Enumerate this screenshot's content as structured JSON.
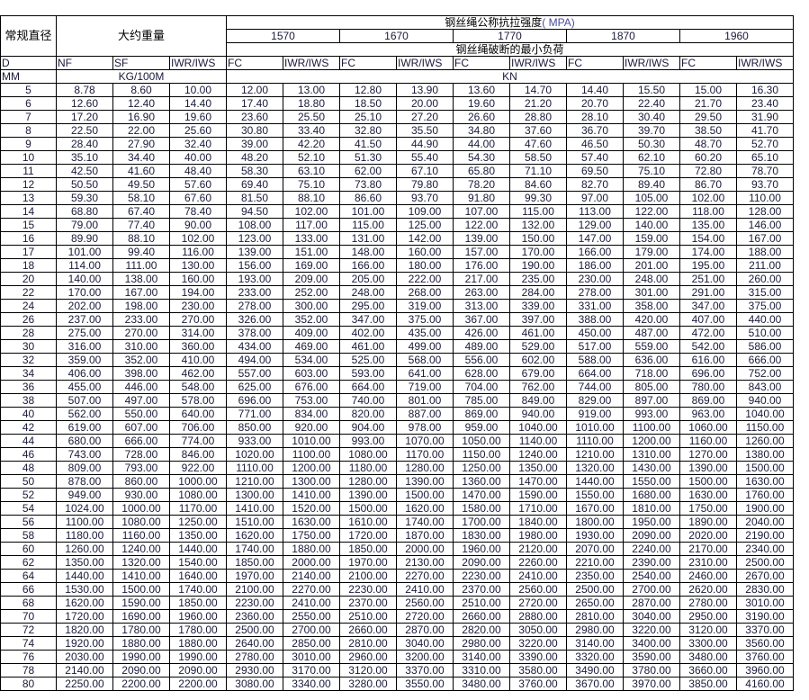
{
  "header": {
    "diameter_label": "常规直径",
    "weight_label": "大约重量",
    "strength_title": "钢丝绳公称抗拉强度",
    "strength_unit": "( MPA)",
    "strengths": [
      "1570",
      "1670",
      "1770",
      "1870",
      "1960"
    ],
    "breaking_load_label": "钢丝绳破断的最小负荷",
    "columns": [
      "D",
      "NF",
      "SF",
      "IWR/IWS",
      "FC",
      "IWR/IWS",
      "FC",
      "IWR/IWS",
      "FC",
      "IWR/IWS",
      "FC",
      "IWR/IWS",
      "FC",
      "IWR/IWS"
    ],
    "unit_diameter": "MM",
    "unit_weight": "KG/100M",
    "unit_load": "KN"
  },
  "rows": [
    [
      "5",
      "8.78",
      "8.60",
      "10.00",
      "12.00",
      "13.00",
      "12.80",
      "13.90",
      "13.60",
      "14.70",
      "14.40",
      "15.50",
      "15.00",
      "16.30"
    ],
    [
      "6",
      "12.60",
      "12.40",
      "14.40",
      "17.40",
      "18.80",
      "18.50",
      "20.00",
      "19.60",
      "21.20",
      "20.70",
      "22.40",
      "21.70",
      "23.40"
    ],
    [
      "7",
      "17.20",
      "16.90",
      "19.60",
      "23.60",
      "25.50",
      "25.10",
      "27.20",
      "26.60",
      "28.80",
      "28.10",
      "30.40",
      "29.50",
      "31.90"
    ],
    [
      "8",
      "22.50",
      "22.00",
      "25.60",
      "30.80",
      "33.40",
      "32.80",
      "35.50",
      "34.80",
      "37.60",
      "36.70",
      "39.70",
      "38.50",
      "41.70"
    ],
    [
      "9",
      "28.40",
      "27.90",
      "32.40",
      "39.00",
      "42.20",
      "41.50",
      "44.90",
      "44.00",
      "47.60",
      "46.50",
      "50.30",
      "48.70",
      "52.70"
    ],
    [
      "10",
      "35.10",
      "34.40",
      "40.00",
      "48.20",
      "52.10",
      "51.30",
      "55.40",
      "54.30",
      "58.50",
      "57.40",
      "62.10",
      "60.20",
      "65.10"
    ],
    [
      "11",
      "42.50",
      "41.60",
      "48.40",
      "58.30",
      "63.10",
      "62.00",
      "67.10",
      "65.80",
      "71.10",
      "69.50",
      "75.10",
      "72.80",
      "78.70"
    ],
    [
      "12",
      "50.50",
      "49.50",
      "57.60",
      "69.40",
      "75.10",
      "73.80",
      "79.80",
      "78.20",
      "84.60",
      "82.70",
      "89.40",
      "86.70",
      "93.70"
    ],
    [
      "13",
      "59.30",
      "58.10",
      "67.60",
      "81.50",
      "88.10",
      "86.60",
      "93.70",
      "91.80",
      "99.30",
      "97.00",
      "105.00",
      "102.00",
      "110.00"
    ],
    [
      "14",
      "68.80",
      "67.40",
      "78.40",
      "94.50",
      "102.00",
      "101.00",
      "109.00",
      "107.00",
      "115.00",
      "113.00",
      "122.00",
      "118.00",
      "128.00"
    ],
    [
      "15",
      "79.00",
      "77.40",
      "90.00",
      "108.00",
      "117.00",
      "115.00",
      "125.00",
      "122.00",
      "132.00",
      "129.00",
      "140.00",
      "135.00",
      "146.00"
    ],
    [
      "16",
      "89.90",
      "88.10",
      "102.00",
      "123.00",
      "133.00",
      "131.00",
      "142.00",
      "139.00",
      "150.00",
      "147.00",
      "159.00",
      "154.00",
      "167.00"
    ],
    [
      "17",
      "101.00",
      "99.40",
      "116.00",
      "139.00",
      "151.00",
      "148.00",
      "160.00",
      "157.00",
      "170.00",
      "166.00",
      "179.00",
      "174.00",
      "188.00"
    ],
    [
      "18",
      "114.00",
      "111.00",
      "130.00",
      "156.00",
      "169.00",
      "166.00",
      "180.00",
      "176.00",
      "190.00",
      "186.00",
      "201.00",
      "195.00",
      "211.00"
    ],
    [
      "20",
      "140.00",
      "138.00",
      "160.00",
      "193.00",
      "209.00",
      "205.00",
      "222.00",
      "217.00",
      "235.00",
      "230.00",
      "248.00",
      "251.00",
      "260.00"
    ],
    [
      "22",
      "170.00",
      "167.00",
      "194.00",
      "233.00",
      "252.00",
      "248.00",
      "268.00",
      "263.00",
      "284.00",
      "278.00",
      "301.00",
      "291.00",
      "315.00"
    ],
    [
      "24",
      "202.00",
      "198.00",
      "230.00",
      "278.00",
      "300.00",
      "295.00",
      "319.00",
      "313.00",
      "339.00",
      "331.00",
      "358.00",
      "347.00",
      "375.00"
    ],
    [
      "26",
      "237.00",
      "233.00",
      "270.00",
      "326.00",
      "352.00",
      "347.00",
      "375.00",
      "367.00",
      "397.00",
      "388.00",
      "420.00",
      "407.00",
      "440.00"
    ],
    [
      "28",
      "275.00",
      "270.00",
      "314.00",
      "378.00",
      "409.00",
      "402.00",
      "435.00",
      "426.00",
      "461.00",
      "450.00",
      "487.00",
      "472.00",
      "510.00"
    ],
    [
      "30",
      "316.00",
      "310.00",
      "360.00",
      "434.00",
      "469.00",
      "461.00",
      "499.00",
      "489.00",
      "529.00",
      "517.00",
      "559.00",
      "542.00",
      "586.00"
    ],
    [
      "32",
      "359.00",
      "352.00",
      "410.00",
      "494.00",
      "534.00",
      "525.00",
      "568.00",
      "556.00",
      "602.00",
      "588.00",
      "636.00",
      "616.00",
      "666.00"
    ],
    [
      "34",
      "406.00",
      "398.00",
      "462.00",
      "557.00",
      "603.00",
      "593.00",
      "641.00",
      "628.00",
      "679.00",
      "664.00",
      "718.00",
      "696.00",
      "752.00"
    ],
    [
      "36",
      "455.00",
      "446.00",
      "548.00",
      "625.00",
      "676.00",
      "664.00",
      "719.00",
      "704.00",
      "762.00",
      "744.00",
      "805.00",
      "780.00",
      "843.00"
    ],
    [
      "38",
      "507.00",
      "497.00",
      "578.00",
      "696.00",
      "753.00",
      "740.00",
      "801.00",
      "785.00",
      "849.00",
      "829.00",
      "897.00",
      "869.00",
      "940.00"
    ],
    [
      "40",
      "562.00",
      "550.00",
      "640.00",
      "771.00",
      "834.00",
      "820.00",
      "887.00",
      "869.00",
      "940.00",
      "919.00",
      "993.00",
      "963.00",
      "1040.00"
    ],
    [
      "42",
      "619.00",
      "607.00",
      "706.00",
      "850.00",
      "920.00",
      "904.00",
      "978.00",
      "959.00",
      "1040.00",
      "1010.00",
      "1100.00",
      "1060.00",
      "1150.00"
    ],
    [
      "44",
      "680.00",
      "666.00",
      "774.00",
      "933.00",
      "1010.00",
      "993.00",
      "1070.00",
      "1050.00",
      "1140.00",
      "1110.00",
      "1200.00",
      "1160.00",
      "1260.00"
    ],
    [
      "46",
      "743.00",
      "728.00",
      "846.00",
      "1020.00",
      "1100.00",
      "1080.00",
      "1170.00",
      "1150.00",
      "1240.00",
      "1210.00",
      "1310.00",
      "1270.00",
      "1380.00"
    ],
    [
      "48",
      "809.00",
      "793.00",
      "922.00",
      "1110.00",
      "1200.00",
      "1180.00",
      "1280.00",
      "1250.00",
      "1350.00",
      "1320.00",
      "1430.00",
      "1390.00",
      "1500.00"
    ],
    [
      "50",
      "878.00",
      "860.00",
      "1000.00",
      "1210.00",
      "1300.00",
      "1280.00",
      "1390.00",
      "1360.00",
      "1470.00",
      "1440.00",
      "1550.00",
      "1500.00",
      "1630.00"
    ],
    [
      "52",
      "949.00",
      "930.00",
      "1080.00",
      "1300.00",
      "1410.00",
      "1390.00",
      "1500.00",
      "1470.00",
      "1590.00",
      "1550.00",
      "1680.00",
      "1630.00",
      "1760.00"
    ],
    [
      "54",
      "1024.00",
      "1000.00",
      "1170.00",
      "1410.00",
      "1520.00",
      "1500.00",
      "1620.00",
      "1580.00",
      "1710.00",
      "1670.00",
      "1810.00",
      "1750.00",
      "1900.00"
    ],
    [
      "56",
      "1100.00",
      "1080.00",
      "1250.00",
      "1510.00",
      "1630.00",
      "1610.00",
      "1740.00",
      "1700.00",
      "1840.00",
      "1800.00",
      "1950.00",
      "1890.00",
      "2040.00"
    ],
    [
      "58",
      "1180.00",
      "1160.00",
      "1350.00",
      "1620.00",
      "1750.00",
      "1720.00",
      "1870.00",
      "1830.00",
      "1980.00",
      "1930.00",
      "2090.00",
      "2020.00",
      "2190.00"
    ],
    [
      "60",
      "1260.00",
      "1240.00",
      "1440.00",
      "1740.00",
      "1880.00",
      "1850.00",
      "2000.00",
      "1960.00",
      "2120.00",
      "2070.00",
      "2240.00",
      "2170.00",
      "2340.00"
    ],
    [
      "62",
      "1350.00",
      "1320.00",
      "1540.00",
      "1850.00",
      "2000.00",
      "1970.00",
      "2130.00",
      "2090.00",
      "2260.00",
      "2210.00",
      "2390.00",
      "2310.00",
      "2500.00"
    ],
    [
      "64",
      "1440.00",
      "1410.00",
      "1640.00",
      "1970.00",
      "2140.00",
      "2100.00",
      "2270.00",
      "2230.00",
      "2410.00",
      "2350.00",
      "2540.00",
      "2460.00",
      "2670.00"
    ],
    [
      "66",
      "1530.00",
      "1500.00",
      "1740.00",
      "2100.00",
      "2270.00",
      "2230.00",
      "2410.00",
      "2370.00",
      "2560.00",
      "2500.00",
      "2700.00",
      "2620.00",
      "2830.00"
    ],
    [
      "68",
      "1620.00",
      "1590.00",
      "1850.00",
      "2230.00",
      "2410.00",
      "2370.00",
      "2560.00",
      "2510.00",
      "2720.00",
      "2650.00",
      "2870.00",
      "2780.00",
      "3010.00"
    ],
    [
      "70",
      "1720.00",
      "1690.00",
      "1960.00",
      "2360.00",
      "2550.00",
      "2510.00",
      "2720.00",
      "2660.00",
      "2880.00",
      "2810.00",
      "3040.00",
      "2950.00",
      "3190.00"
    ],
    [
      "72",
      "1820.00",
      "1780.00",
      "1780.00",
      "2500.00",
      "2700.00",
      "2660.00",
      "2870.00",
      "2820.00",
      "3050.00",
      "2980.00",
      "3220.00",
      "3120.00",
      "3370.00"
    ],
    [
      "74",
      "1920.00",
      "1880.00",
      "1880.00",
      "2640.00",
      "2850.00",
      "2810.00",
      "3040.00",
      "2980.00",
      "3220.00",
      "3140.00",
      "3400.00",
      "3300.00",
      "3560.00"
    ],
    [
      "76",
      "2030.00",
      "1990.00",
      "1990.00",
      "2780.00",
      "3010.00",
      "2960.00",
      "3200.00",
      "3140.00",
      "3390.00",
      "3320.00",
      "3590.00",
      "3480.00",
      "3760.00"
    ],
    [
      "78",
      "2140.00",
      "2090.00",
      "2090.00",
      "2930.00",
      "3170.00",
      "3120.00",
      "3370.00",
      "3310.00",
      "3580.00",
      "3490.00",
      "3780.00",
      "3660.00",
      "3960.00"
    ],
    [
      "80",
      "2250.00",
      "2200.00",
      "2200.00",
      "3080.00",
      "3340.00",
      "3280.00",
      "3550.00",
      "3480.00",
      "3760.00",
      "3670.00",
      "3970.00",
      "3850.00",
      "4160.00"
    ]
  ]
}
